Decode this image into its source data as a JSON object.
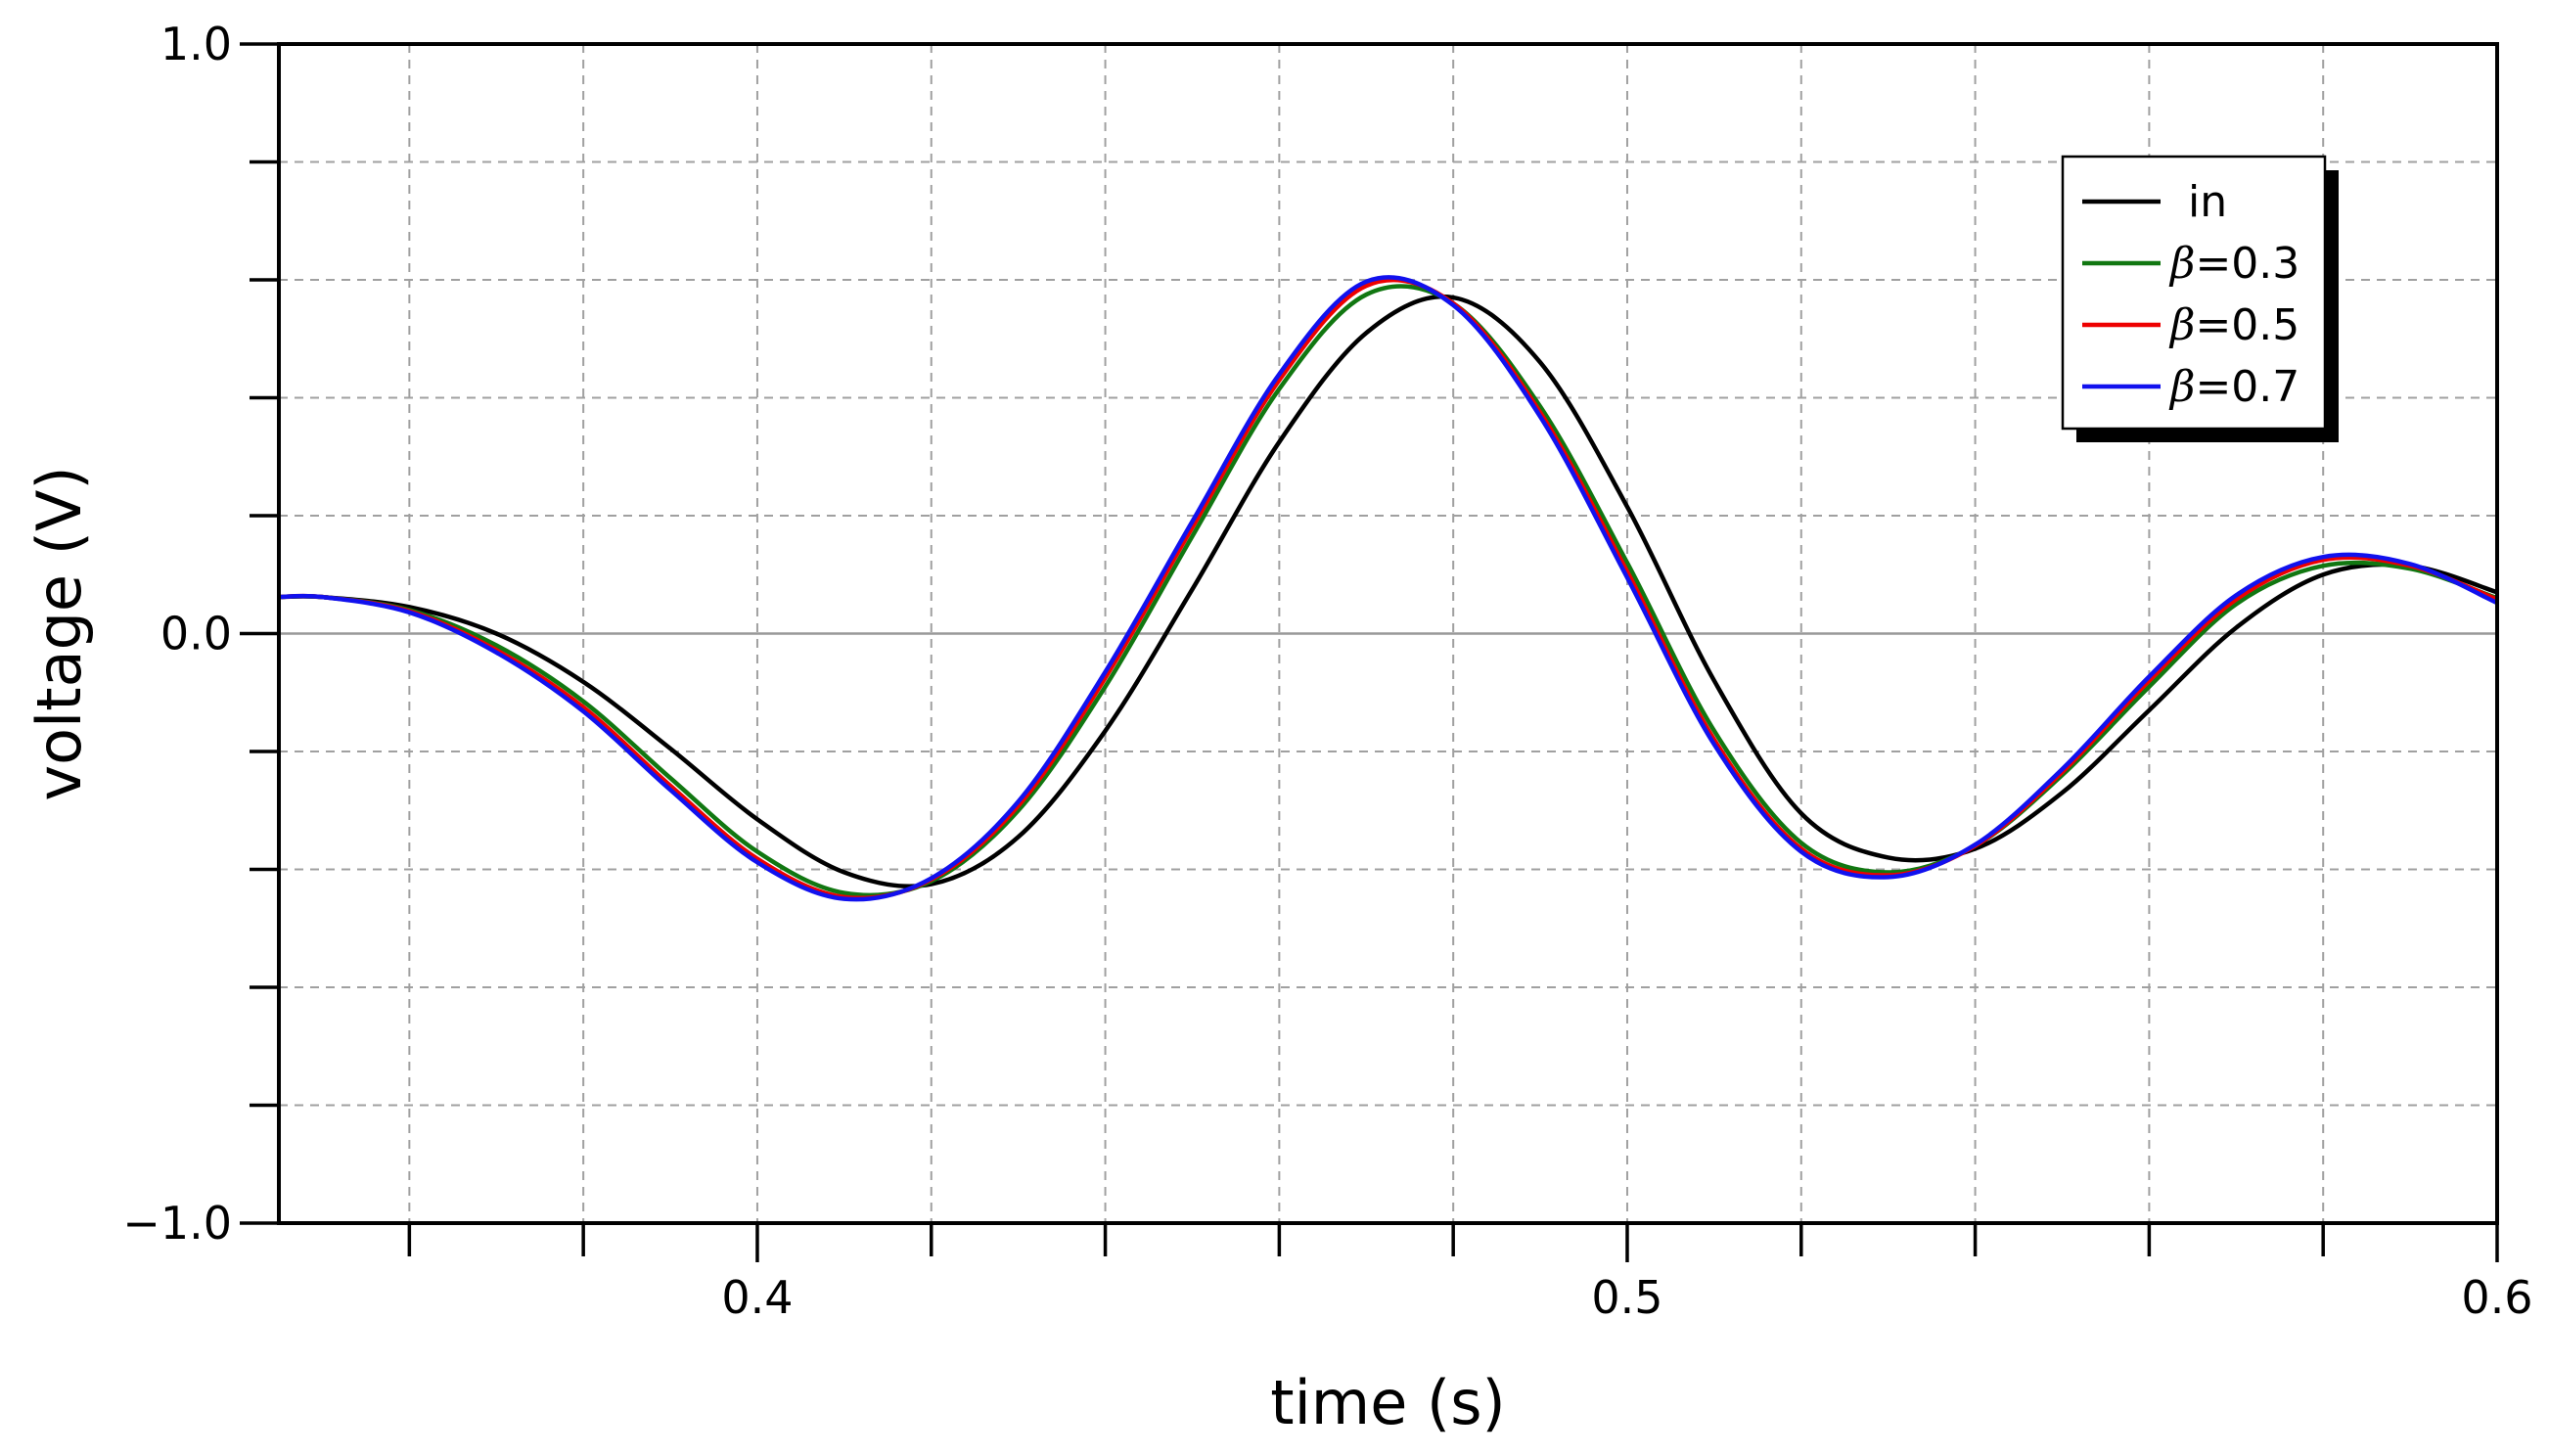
{
  "chart_data": {
    "type": "line",
    "title": "",
    "xlabel": "time (s)",
    "ylabel": "voltage (V)",
    "xlim": [
      0.345,
      0.6
    ],
    "ylim": [
      -1.0,
      1.0
    ],
    "x_major_ticks": [
      0.4,
      0.5,
      0.6
    ],
    "x_tick_labels": [
      "0.4",
      "0.5",
      "0.6"
    ],
    "x_minor_ticks": [
      0.36,
      0.38,
      0.42,
      0.44,
      0.46,
      0.48,
      0.52,
      0.54,
      0.56,
      0.58
    ],
    "y_major_ticks": [
      -1.0,
      0.0,
      1.0
    ],
    "y_tick_labels": [
      "−1.0",
      "0.0",
      "1.0"
    ],
    "y_minor_ticks": [
      -0.8,
      -0.6,
      -0.4,
      -0.2,
      0.2,
      0.4,
      0.6,
      0.8
    ],
    "grid": true,
    "zero_line": true,
    "legend_position": "top-right",
    "x": [
      0.345,
      0.35,
      0.36,
      0.37,
      0.38,
      0.39,
      0.4,
      0.41,
      0.42,
      0.43,
      0.44,
      0.45,
      0.46,
      0.47,
      0.48,
      0.49,
      0.5,
      0.51,
      0.52,
      0.53,
      0.54,
      0.55,
      0.56,
      0.57,
      0.58,
      0.59,
      0.6
    ],
    "series": [
      {
        "name": "in",
        "label": "in",
        "color": "#000000",
        "values": [
          0.062,
          0.062,
          0.045,
          0.0,
          -0.082,
          -0.195,
          -0.315,
          -0.405,
          -0.425,
          -0.345,
          -0.165,
          0.075,
          0.325,
          0.51,
          0.57,
          0.46,
          0.215,
          -0.08,
          -0.305,
          -0.38,
          -0.365,
          -0.27,
          -0.13,
          0.01,
          0.1,
          0.115,
          0.07
        ]
      },
      {
        "name": "beta=0.3",
        "label_prefix": "β",
        "label_suffix": "=0.3",
        "color": "#117711",
        "values": [
          0.062,
          0.062,
          0.04,
          -0.02,
          -0.115,
          -0.245,
          -0.37,
          -0.44,
          -0.42,
          -0.3,
          -0.09,
          0.165,
          0.415,
          0.575,
          0.56,
          0.385,
          0.12,
          -0.165,
          -0.355,
          -0.405,
          -0.36,
          -0.24,
          -0.09,
          0.05,
          0.115,
          0.11,
          0.06
        ]
      },
      {
        "name": "beta=0.5",
        "label_prefix": "β",
        "label_suffix": "=0.5",
        "color": "#ee0000",
        "values": [
          0.062,
          0.062,
          0.038,
          -0.028,
          -0.125,
          -0.258,
          -0.382,
          -0.447,
          -0.417,
          -0.292,
          -0.075,
          0.18,
          0.43,
          0.59,
          0.56,
          0.375,
          0.105,
          -0.18,
          -0.365,
          -0.41,
          -0.36,
          -0.235,
          -0.08,
          0.058,
          0.125,
          0.115,
          0.058
        ]
      },
      {
        "name": "beta=0.7",
        "label_prefix": "β",
        "label_suffix": "=0.7",
        "color": "#1111ee",
        "values": [
          0.062,
          0.062,
          0.036,
          -0.032,
          -0.132,
          -0.265,
          -0.388,
          -0.45,
          -0.415,
          -0.285,
          -0.065,
          0.19,
          0.44,
          0.597,
          0.557,
          0.368,
          0.095,
          -0.188,
          -0.37,
          -0.413,
          -0.358,
          -0.23,
          -0.073,
          0.065,
          0.13,
          0.118,
          0.052
        ]
      }
    ]
  }
}
